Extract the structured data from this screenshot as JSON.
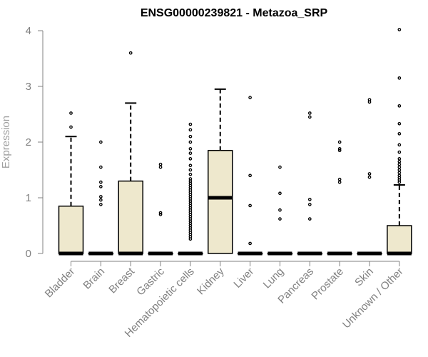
{
  "chart_data": {
    "type": "box",
    "title": "ENSG00000239821 - Metazoa_SRP",
    "xlabel": "",
    "ylabel": "Expression",
    "ylim": [
      0,
      4
    ],
    "yticks": [
      "0",
      "1",
      "2",
      "3",
      "4"
    ],
    "box_color": "#EEE8CD",
    "categories": [
      "Bladder",
      "Brain",
      "Breast",
      "Gastric",
      "Hematopoietic cells",
      "Kidney",
      "Liver",
      "Lung",
      "Pancreas",
      "Prostate",
      "Skin",
      "Unknown / Other"
    ],
    "boxes": [
      {
        "q1": 0,
        "median": 0,
        "q3": 0.85,
        "whisker_low": 0,
        "whisker_high": 2.1,
        "outliers": [
          2.27,
          2.52
        ]
      },
      {
        "q1": 0,
        "median": 0,
        "q3": 0,
        "whisker_low": 0,
        "whisker_high": 0,
        "outliers": [
          0.88,
          0.96,
          1.02,
          1.2,
          1.28,
          1.55,
          2.0
        ]
      },
      {
        "q1": 0,
        "median": 0,
        "q3": 1.3,
        "whisker_low": 0,
        "whisker_high": 2.7,
        "outliers": [
          3.6
        ]
      },
      {
        "q1": 0,
        "median": 0,
        "q3": 0,
        "whisker_low": 0,
        "whisker_high": 0,
        "outliers": [
          0.7,
          0.73,
          1.55,
          1.6
        ]
      },
      {
        "q1": 0,
        "median": 0,
        "q3": 0,
        "whisker_low": 0,
        "whisker_high": 0,
        "outliers": [
          0.26,
          0.3,
          0.34,
          0.38,
          0.42,
          0.46,
          0.5,
          0.54,
          0.58,
          0.62,
          0.66,
          0.7,
          0.74,
          0.78,
          0.82,
          0.86,
          0.9,
          0.94,
          0.98,
          1.02,
          1.06,
          1.1,
          1.14,
          1.18,
          1.22,
          1.26,
          1.3,
          1.34,
          1.42,
          1.5,
          1.58,
          1.7,
          1.8,
          1.88,
          2.0,
          2.1,
          2.22,
          2.32
        ]
      },
      {
        "q1": 0,
        "median": 1.0,
        "q3": 1.85,
        "whisker_low": 0,
        "whisker_high": 2.95,
        "outliers": []
      },
      {
        "q1": 0,
        "median": 0,
        "q3": 0,
        "whisker_low": 0,
        "whisker_high": 0,
        "outliers": [
          0.18,
          0.86,
          1.4,
          2.8
        ]
      },
      {
        "q1": 0,
        "median": 0,
        "q3": 0,
        "whisker_low": 0,
        "whisker_high": 0,
        "outliers": [
          0.62,
          0.78,
          1.08,
          1.55
        ]
      },
      {
        "q1": 0,
        "median": 0,
        "q3": 0,
        "whisker_low": 0,
        "whisker_high": 0,
        "outliers": [
          0.62,
          0.88,
          0.97,
          2.45,
          2.52
        ]
      },
      {
        "q1": 0,
        "median": 0,
        "q3": 0,
        "whisker_low": 0,
        "whisker_high": 0,
        "outliers": [
          1.28,
          1.33,
          1.85,
          1.88,
          2.0
        ]
      },
      {
        "q1": 0,
        "median": 0,
        "q3": 0,
        "whisker_low": 0,
        "whisker_high": 0,
        "outliers": [
          1.37,
          1.43,
          2.72,
          2.76
        ]
      },
      {
        "q1": 0,
        "median": 0,
        "q3": 0.5,
        "whisker_low": 0,
        "whisker_high": 1.23,
        "outliers": [
          1.28,
          1.32,
          1.36,
          1.4,
          1.45,
          1.5,
          1.55,
          1.6,
          1.65,
          1.7,
          1.82,
          1.95,
          2.15,
          2.33,
          2.65,
          3.15,
          4.02
        ]
      }
    ]
  }
}
